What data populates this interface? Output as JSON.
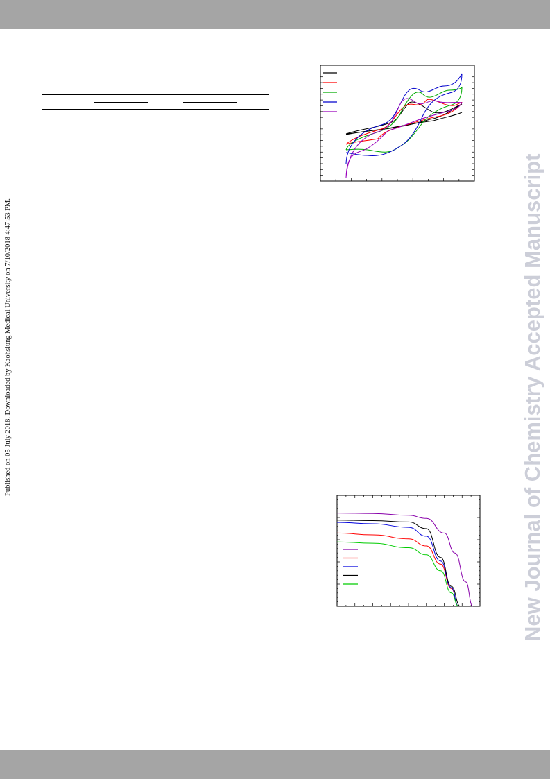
{
  "page": {
    "side_note": "Published on 05 July 2018. Downloaded by Kaohsiung Medical University on 7/10/2018 4:47:53 PM.",
    "watermark": "New Journal of Chemistry Accepted Manuscript"
  },
  "chart_data": [
    {
      "type": "line",
      "description_series_colors": [
        "#000000",
        "#ff0000",
        "#00aa00",
        "#0000cc",
        "#9900bb"
      ],
      "series": [
        {
          "color": "#000000",
          "values": []
        },
        {
          "color": "#ff0000",
          "values": []
        },
        {
          "color": "#00aa00",
          "values": []
        },
        {
          "color": "#0000cc",
          "values": []
        },
        {
          "color": "#9900bb",
          "values": []
        }
      ],
      "legend_position": "top-left"
    },
    {
      "type": "line",
      "series": [
        {
          "color": "#8800aa",
          "x": [
            0,
            0.2,
            0.4,
            0.5,
            0.6,
            0.66,
            0.72,
            0.76
          ],
          "y": [
            21.0,
            20.9,
            20.5,
            19.8,
            16.5,
            12.0,
            5.5,
            0.0
          ]
        },
        {
          "color": "#ff0000",
          "x": [
            0,
            0.2,
            0.4,
            0.5,
            0.58,
            0.64,
            0.68
          ],
          "y": [
            16.5,
            16.1,
            15.2,
            13.6,
            9.5,
            4.0,
            0.0
          ]
        },
        {
          "color": "#0000dd",
          "x": [
            0,
            0.2,
            0.4,
            0.5,
            0.58,
            0.64,
            0.68
          ],
          "y": [
            18.9,
            18.6,
            17.8,
            15.8,
            10.2,
            4.2,
            0.0
          ]
        },
        {
          "color": "#000000",
          "x": [
            0,
            0.2,
            0.4,
            0.5,
            0.58,
            0.64,
            0.69
          ],
          "y": [
            19.4,
            19.3,
            19.0,
            17.5,
            11.0,
            4.5,
            0.0
          ]
        },
        {
          "color": "#00cc00",
          "x": [
            0,
            0.2,
            0.4,
            0.5,
            0.58,
            0.64,
            0.68
          ],
          "y": [
            14.5,
            14.2,
            13.2,
            11.6,
            8.0,
            3.0,
            0.0
          ]
        }
      ],
      "xlim": [
        0,
        0.8
      ],
      "ylim": [
        0,
        25
      ],
      "legend_position": "bottom-left"
    }
  ]
}
